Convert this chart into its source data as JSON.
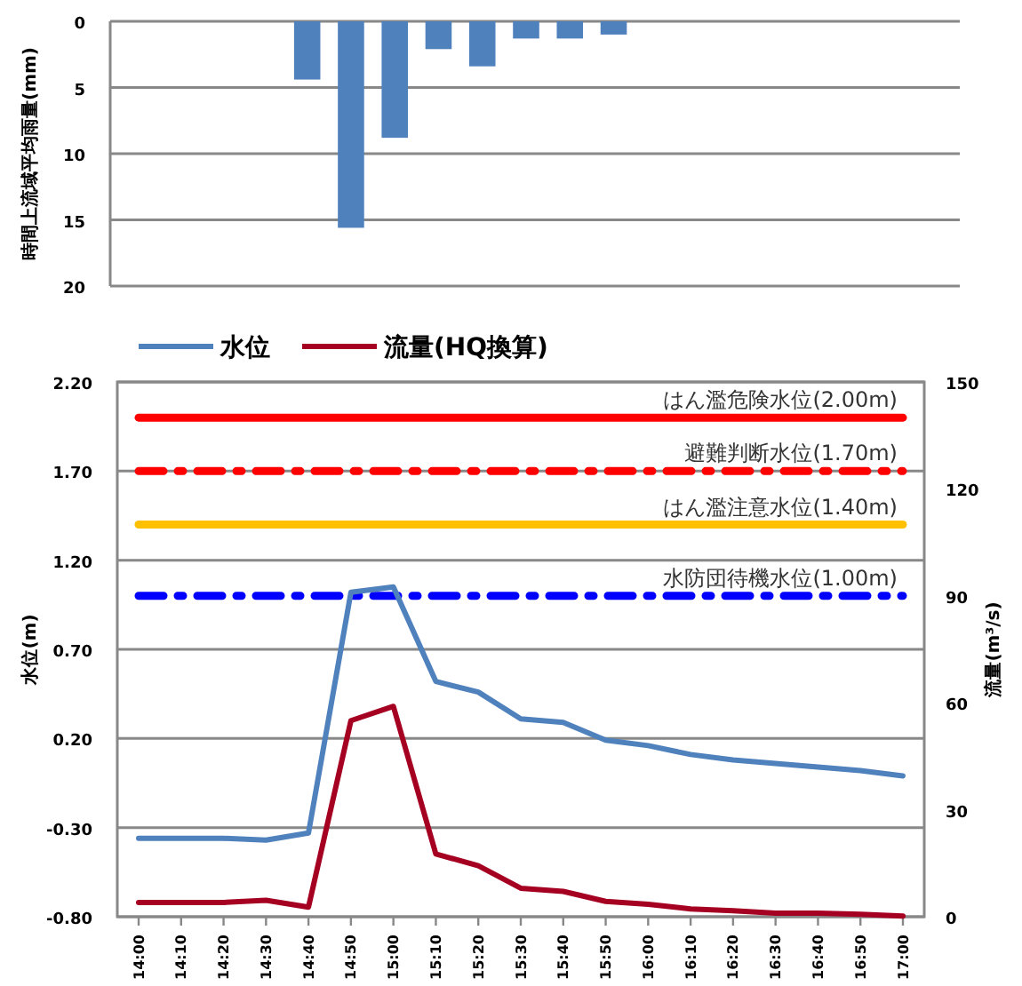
{
  "chart_data": [
    {
      "type": "bar",
      "categories": [
        null,
        null,
        null,
        null,
        null,
        null,
        null,
        null,
        null,
        null,
        null,
        null,
        null,
        null,
        null,
        null,
        null,
        null,
        null
      ],
      "values": [
        null,
        null,
        null,
        null,
        4.4,
        15.6,
        8.8,
        2.1,
        3.4,
        1.3,
        1.3,
        1.0,
        null,
        null,
        null,
        null,
        null,
        null,
        null
      ],
      "color": "#4f81bd",
      "ylabel": "時間上流域平均雨量(mm)",
      "ylim": [
        20,
        0
      ],
      "yticks": [
        0,
        5,
        10,
        15,
        20
      ],
      "grid": "y",
      "tick_labels": "y"
    },
    {
      "type": "line",
      "categories": [
        "14:00",
        "14:10",
        "14:20",
        "14:30",
        "14:40",
        "14:50",
        "15:00",
        "15:10",
        "15:20",
        "15:30",
        "15:40",
        "15:50",
        "16:00",
        "16:10",
        "16:20",
        "16:30",
        "16:40",
        "16:50",
        "17:00"
      ],
      "series": [
        {
          "name": "水位",
          "color": "#4f81bd",
          "values": [
            -0.36,
            -0.36,
            -0.36,
            -0.37,
            -0.33,
            1.02,
            1.05,
            0.52,
            0.46,
            0.31,
            0.29,
            0.19,
            0.16,
            0.11,
            0.08,
            0.06,
            0.04,
            0.02,
            -0.01
          ]
        },
        {
          "name": "流量(HQ換算)",
          "color": "#a50021",
          "axis": "y2",
          "values": [
            4,
            4,
            4,
            4.6,
            2.7,
            55,
            59,
            17.6,
            14.3,
            8,
            7.1,
            4.3,
            3.5,
            2.2,
            1.7,
            1.0,
            1.0,
            0.7,
            0.2
          ]
        }
      ],
      "ylabel": "水位(m)",
      "y2label": "流量(m³/s)",
      "ylim": [
        -0.8,
        2.2
      ],
      "yticks": [
        {
          "value": -0.8,
          "label": "-0.80"
        },
        {
          "value": -0.3,
          "label": "-0.30"
        },
        {
          "value": 0.2,
          "label": "0.20"
        },
        {
          "value": 0.7,
          "label": "0.70"
        },
        {
          "value": 1.2,
          "label": "1.20"
        },
        {
          "value": 1.7,
          "label": "1.70"
        },
        {
          "value": 2.2,
          "label": "2.20"
        }
      ],
      "y2lim": [
        0,
        150
      ],
      "y2ticks": [
        0,
        30,
        60,
        90,
        120,
        150
      ],
      "grid": "y",
      "legend": "top",
      "ref_lines": [
        {
          "axis": "y",
          "value": 2.0,
          "label": "はん濫危険水位(2.00m)",
          "color": "#ff0000",
          "line_style": "solid"
        },
        {
          "axis": "y",
          "value": 1.7,
          "label": "避難判断水位(1.70m)",
          "color": "#ff0000",
          "line_style": "dashdot"
        },
        {
          "axis": "y",
          "value": 1.4,
          "label": "はん濫注意水位(1.40m)",
          "color": "#ffc000",
          "line_style": "solid"
        },
        {
          "axis": "y",
          "value": 1.0,
          "label": "水防団待機水位(1.00m)",
          "color": "#0000ff",
          "line_style": "dashdot"
        }
      ]
    }
  ]
}
